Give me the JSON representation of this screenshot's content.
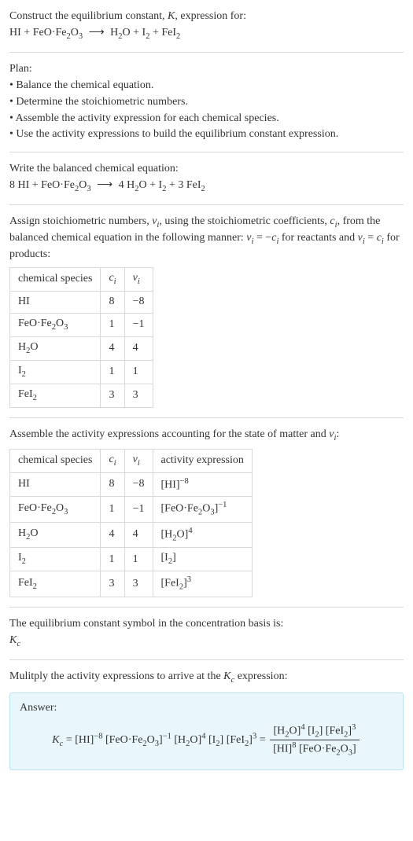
{
  "intro": {
    "line1_a": "Construct the equilibrium constant, ",
    "K": "K",
    "line1_b": ", expression for:"
  },
  "initial_eq": {
    "lhs": [
      {
        "text": "HI"
      },
      {
        "text": " + "
      },
      {
        "text": "FeO·Fe"
      },
      {
        "sub": "2"
      },
      {
        "text": "O"
      },
      {
        "sub": "3"
      }
    ],
    "arrow": "⟶",
    "rhs": [
      {
        "text": "H"
      },
      {
        "sub": "2"
      },
      {
        "text": "O + I"
      },
      {
        "sub": "2"
      },
      {
        "text": " + FeI"
      },
      {
        "sub": "2"
      }
    ]
  },
  "plan": {
    "heading": "Plan:",
    "items": [
      "• Balance the chemical equation.",
      "• Determine the stoichiometric numbers.",
      "• Assemble the activity expression for each chemical species.",
      "• Use the activity expressions to build the equilibrium constant expression."
    ]
  },
  "balanced": {
    "heading": "Write the balanced chemical equation:",
    "lhs": [
      {
        "text": "8 HI + FeO·Fe"
      },
      {
        "sub": "2"
      },
      {
        "text": "O"
      },
      {
        "sub": "3"
      }
    ],
    "arrow": "⟶",
    "rhs": [
      {
        "text": "4 H"
      },
      {
        "sub": "2"
      },
      {
        "text": "O + I"
      },
      {
        "sub": "2"
      },
      {
        "text": " + 3 FeI"
      },
      {
        "sub": "2"
      }
    ]
  },
  "assign": {
    "line1_a": "Assign stoichiometric numbers, ",
    "nu_i_parts": [
      {
        "ital": "ν"
      },
      {
        "sub_ital": "i"
      }
    ],
    "line1_b": ", using the stoichiometric coefficients, ",
    "c_i_parts": [
      {
        "ital": "c"
      },
      {
        "sub_ital": "i"
      }
    ],
    "line1_c": ", from the balanced chemical equation in the following manner: ",
    "eq1_parts": [
      {
        "ital": "ν"
      },
      {
        "sub_ital": "i"
      },
      {
        "text": " = −"
      },
      {
        "ital": "c"
      },
      {
        "sub_ital": "i"
      }
    ],
    "line1_d": " for reactants and ",
    "eq2_parts": [
      {
        "ital": "ν"
      },
      {
        "sub_ital": "i"
      },
      {
        "text": " = "
      },
      {
        "ital": "c"
      },
      {
        "sub_ital": "i"
      }
    ],
    "line1_e": " for products:"
  },
  "table1": {
    "headers": {
      "species": "chemical species",
      "c_parts": [
        {
          "ital": "c"
        },
        {
          "sub_ital": "i"
        }
      ],
      "nu_parts": [
        {
          "ital": "ν"
        },
        {
          "sub_ital": "i"
        }
      ]
    },
    "rows": [
      {
        "species": [
          {
            "text": "HI"
          }
        ],
        "c": "8",
        "nu": "−8"
      },
      {
        "species": [
          {
            "text": "FeO·Fe"
          },
          {
            "sub": "2"
          },
          {
            "text": "O"
          },
          {
            "sub": "3"
          }
        ],
        "c": "1",
        "nu": "−1"
      },
      {
        "species": [
          {
            "text": "H"
          },
          {
            "sub": "2"
          },
          {
            "text": "O"
          }
        ],
        "c": "4",
        "nu": "4"
      },
      {
        "species": [
          {
            "text": "I"
          },
          {
            "sub": "2"
          }
        ],
        "c": "1",
        "nu": "1"
      },
      {
        "species": [
          {
            "text": "FeI"
          },
          {
            "sub": "2"
          }
        ],
        "c": "3",
        "nu": "3"
      }
    ]
  },
  "assemble": {
    "text_a": "Assemble the activity expressions accounting for the state of matter and ",
    "nu_i_parts": [
      {
        "ital": "ν"
      },
      {
        "sub_ital": "i"
      }
    ],
    "text_b": ":"
  },
  "table2": {
    "headers": {
      "species": "chemical species",
      "c_parts": [
        {
          "ital": "c"
        },
        {
          "sub_ital": "i"
        }
      ],
      "nu_parts": [
        {
          "ital": "ν"
        },
        {
          "sub_ital": "i"
        }
      ],
      "activity": "activity expression"
    },
    "rows": [
      {
        "species": [
          {
            "text": "HI"
          }
        ],
        "c": "8",
        "nu": "−8",
        "activity": [
          {
            "text": "[HI]"
          },
          {
            "sup": "−8"
          }
        ]
      },
      {
        "species": [
          {
            "text": "FeO·Fe"
          },
          {
            "sub": "2"
          },
          {
            "text": "O"
          },
          {
            "sub": "3"
          }
        ],
        "c": "1",
        "nu": "−1",
        "activity": [
          {
            "text": "[FeO·Fe"
          },
          {
            "sub": "2"
          },
          {
            "text": "O"
          },
          {
            "sub": "3"
          },
          {
            "text": "]"
          },
          {
            "sup": "−1"
          }
        ]
      },
      {
        "species": [
          {
            "text": "H"
          },
          {
            "sub": "2"
          },
          {
            "text": "O"
          }
        ],
        "c": "4",
        "nu": "4",
        "activity": [
          {
            "text": "[H"
          },
          {
            "sub": "2"
          },
          {
            "text": "O]"
          },
          {
            "sup": "4"
          }
        ]
      },
      {
        "species": [
          {
            "text": "I"
          },
          {
            "sub": "2"
          }
        ],
        "c": "1",
        "nu": "1",
        "activity": [
          {
            "text": "[I"
          },
          {
            "sub": "2"
          },
          {
            "text": "]"
          }
        ]
      },
      {
        "species": [
          {
            "text": "FeI"
          },
          {
            "sub": "2"
          }
        ],
        "c": "3",
        "nu": "3",
        "activity": [
          {
            "text": "[FeI"
          },
          {
            "sub": "2"
          },
          {
            "text": "]"
          },
          {
            "sup": "3"
          }
        ]
      }
    ]
  },
  "symbol": {
    "line": "The equilibrium constant symbol in the concentration basis is:",
    "kc_parts": [
      {
        "ital": "K"
      },
      {
        "sub_ital": "c"
      }
    ]
  },
  "multiply": {
    "text_a": "Mulitply the activity expressions to arrive at the ",
    "kc_parts": [
      {
        "ital": "K"
      },
      {
        "sub_ital": "c"
      }
    ],
    "text_b": " expression:"
  },
  "answer": {
    "label": "Answer:",
    "kc_parts": [
      {
        "ital": "K"
      },
      {
        "sub_ital": "c"
      }
    ],
    "eq_left": [
      {
        "text": " = [HI]"
      },
      {
        "sup": "−8"
      },
      {
        "text": " [FeO·Fe"
      },
      {
        "sub": "2"
      },
      {
        "text": "O"
      },
      {
        "sub": "3"
      },
      {
        "text": "]"
      },
      {
        "sup": "−1"
      },
      {
        "text": " [H"
      },
      {
        "sub": "2"
      },
      {
        "text": "O]"
      },
      {
        "sup": "4"
      },
      {
        "text": " [I"
      },
      {
        "sub": "2"
      },
      {
        "text": "] [FeI"
      },
      {
        "sub": "2"
      },
      {
        "text": "]"
      },
      {
        "sup": "3"
      },
      {
        "text": " = "
      }
    ],
    "frac_num": [
      {
        "text": "[H"
      },
      {
        "sub": "2"
      },
      {
        "text": "O]"
      },
      {
        "sup": "4"
      },
      {
        "text": " [I"
      },
      {
        "sub": "2"
      },
      {
        "text": "] [FeI"
      },
      {
        "sub": "2"
      },
      {
        "text": "]"
      },
      {
        "sup": "3"
      }
    ],
    "frac_den": [
      {
        "text": "[HI]"
      },
      {
        "sup": "8"
      },
      {
        "text": " [FeO·Fe"
      },
      {
        "sub": "2"
      },
      {
        "text": "O"
      },
      {
        "sub": "3"
      },
      {
        "text": "]"
      }
    ]
  }
}
